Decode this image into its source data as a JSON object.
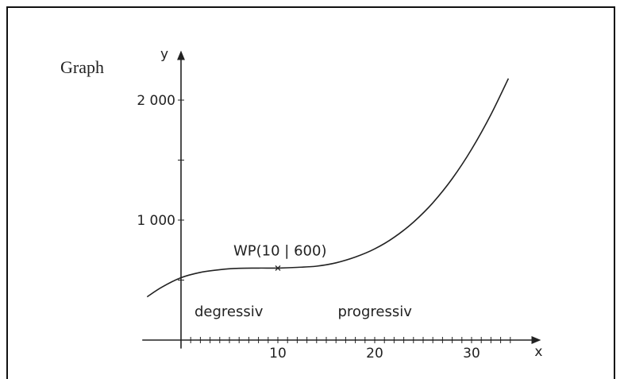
{
  "graph_label": "Graph",
  "chart_data": {
    "type": "line",
    "xlabel": "x",
    "ylabel": "y",
    "x_ticks": [
      {
        "value": 10,
        "label": "10"
      },
      {
        "value": 20,
        "label": "20"
      },
      {
        "value": 30,
        "label": "30"
      }
    ],
    "y_ticks": [
      {
        "value": 1000,
        "label": "1 000"
      },
      {
        "value": 2000,
        "label": "2 000"
      }
    ],
    "xlim": [
      -4,
      37
    ],
    "ylim": [
      -70,
      2400
    ],
    "series": [
      {
        "x": [
          -3.5,
          -2,
          0,
          2,
          4,
          6,
          8,
          10,
          12,
          14,
          16,
          18,
          20,
          22,
          24,
          26,
          28,
          30,
          32,
          33.8
        ],
        "y": [
          360,
          440,
          520,
          564,
          587,
          598,
          600,
          600,
          606,
          616,
          644,
          692,
          760,
          856,
          983,
          1144,
          1345,
          1590,
          1880,
          2180
        ]
      }
    ],
    "inflection_point": {
      "x": 10,
      "y": 600,
      "label": "WP(10 | 600)"
    },
    "annotations": [
      {
        "text": "degressiv",
        "x": 2.7,
        "y": 240
      },
      {
        "text": "progressiv",
        "x": 17.5,
        "y": 240
      }
    ],
    "color": "#222222"
  }
}
